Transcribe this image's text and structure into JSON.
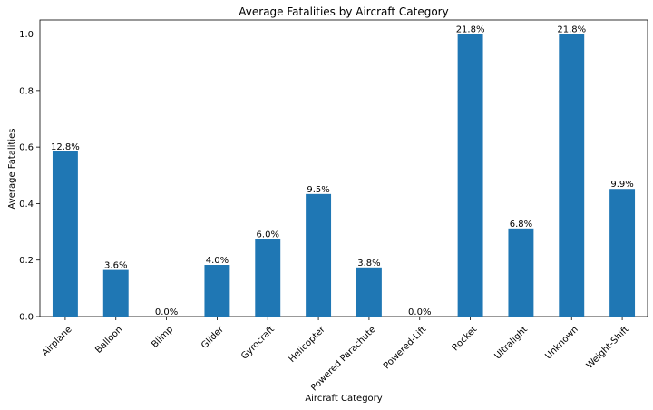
{
  "chart_data": {
    "type": "bar",
    "title": "Average Fatalities by Aircraft Category",
    "xlabel": "Aircraft Category",
    "ylabel": "Average Fatalities",
    "categories": [
      "Airplane",
      "Balloon",
      "Blimp",
      "Glider",
      "Gyrocraft",
      "Helicopter",
      "Powered Parachute",
      "Powered-Lift",
      "Rocket",
      "Ultralight",
      "Unknown",
      "Weight-Shift"
    ],
    "values": [
      0.585,
      0.165,
      0.0,
      0.183,
      0.274,
      0.434,
      0.174,
      0.0,
      1.0,
      0.312,
      1.0,
      0.452
    ],
    "data_labels": [
      "12.8%",
      "3.6%",
      "0.0%",
      "4.0%",
      "6.0%",
      "9.5%",
      "3.8%",
      "0.0%",
      "21.8%",
      "6.8%",
      "21.8%",
      "9.9%"
    ],
    "ylim": [
      0,
      1.05
    ],
    "yticks": [
      0.0,
      0.2,
      0.4,
      0.6,
      0.8,
      1.0
    ],
    "ytick_labels": [
      "0.0",
      "0.2",
      "0.4",
      "0.6",
      "0.8",
      "1.0"
    ],
    "grid": false,
    "legend": "none",
    "bar_color": "#1f77b4"
  }
}
